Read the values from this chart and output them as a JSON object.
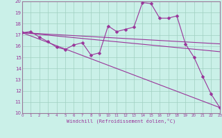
{
  "xlabel": "Windchill (Refroidissement éolien,°C)",
  "background_color": "#caf0e8",
  "grid_color": "#a0cfc0",
  "line_color": "#993399",
  "border_color": "#997799",
  "xlim": [
    0,
    23
  ],
  "ylim": [
    10,
    20
  ],
  "yticks": [
    10,
    11,
    12,
    13,
    14,
    15,
    16,
    17,
    18,
    19,
    20
  ],
  "xticks": [
    0,
    1,
    2,
    3,
    4,
    5,
    6,
    7,
    8,
    9,
    10,
    11,
    12,
    13,
    14,
    15,
    16,
    17,
    18,
    19,
    20,
    21,
    22,
    23
  ],
  "series1_x": [
    0,
    1,
    2,
    3,
    4,
    5,
    6,
    7,
    8,
    9,
    10,
    11,
    12,
    13,
    14,
    15,
    16,
    17,
    18,
    19,
    20,
    21,
    22,
    23
  ],
  "series1_y": [
    17.2,
    17.3,
    16.8,
    16.4,
    15.9,
    15.7,
    16.1,
    16.3,
    15.2,
    15.4,
    17.8,
    17.3,
    17.5,
    17.7,
    19.9,
    19.8,
    18.5,
    18.5,
    18.7,
    16.2,
    15.0,
    13.3,
    11.7,
    10.5
  ],
  "series2_x": [
    0,
    23
  ],
  "series2_y": [
    17.2,
    16.2
  ],
  "series3_x": [
    0,
    23
  ],
  "series3_y": [
    17.2,
    15.5
  ],
  "series4_x": [
    0,
    23
  ],
  "series4_y": [
    17.2,
    10.5
  ],
  "marker": "D",
  "markersize": 2.5,
  "linewidth": 0.8
}
